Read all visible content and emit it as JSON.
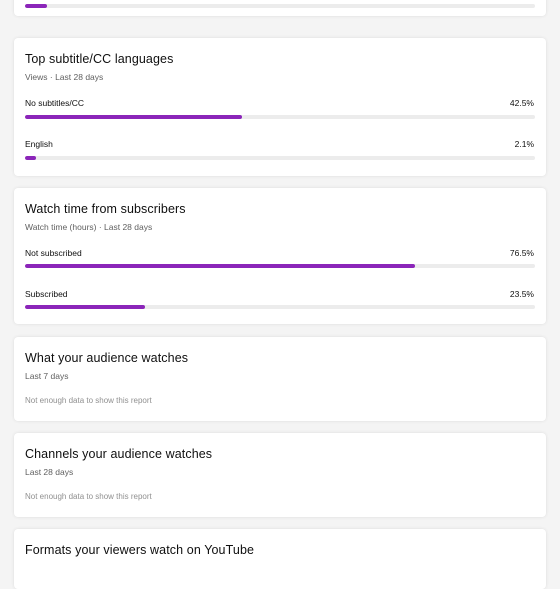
{
  "colors": {
    "bar": "#8b25b9",
    "track": "#ececec"
  },
  "top_partial": {
    "fill_percent": 4.3
  },
  "subtitle_languages": {
    "title": "Top subtitle/CC languages",
    "subtitle": "Views · Last 28 days",
    "rows": [
      {
        "label": "No subtitles/CC",
        "value": "42.5%",
        "percent": 42.5
      },
      {
        "label": "English",
        "value": "2.1%",
        "percent": 2.1
      }
    ]
  },
  "subscribers": {
    "title": "Watch time from subscribers",
    "subtitle": "Watch time (hours) · Last 28 days",
    "rows": [
      {
        "label": "Not subscribed",
        "value": "76.5%",
        "percent": 76.5
      },
      {
        "label": "Subscribed",
        "value": "23.5%",
        "percent": 23.5
      }
    ]
  },
  "audience_watches": {
    "title": "What your audience watches",
    "subtitle": "Last 7 days",
    "empty": "Not enough data to show this report"
  },
  "channels_watches": {
    "title": "Channels your audience watches",
    "subtitle": "Last 28 days",
    "empty": "Not enough data to show this report"
  },
  "formats": {
    "title": "Formats your viewers watch on YouTube"
  }
}
